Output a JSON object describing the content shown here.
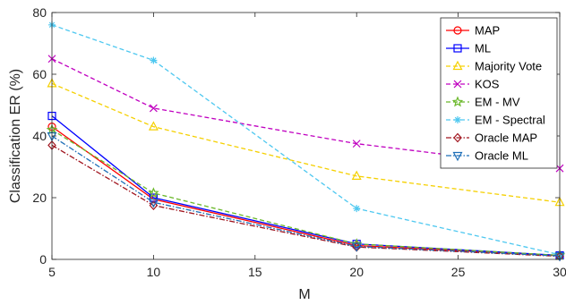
{
  "chart_data": {
    "type": "line",
    "title": "",
    "xlabel": "M",
    "ylabel": "Classification ER (%)",
    "xlim": [
      5,
      30
    ],
    "ylim": [
      0,
      80
    ],
    "xticks": [
      "5",
      "10",
      "15",
      "20",
      "25",
      "30"
    ],
    "yticks": [
      "0",
      "20",
      "40",
      "60",
      "80"
    ],
    "grid": false,
    "legend_position": "top-right",
    "x": [
      5,
      10,
      20,
      30
    ],
    "series": [
      {
        "name": "MAP",
        "color": "#ff0000",
        "dash": "solid",
        "marker": "circle",
        "values": [
          43,
          19.5,
          4.5,
          1.2
        ]
      },
      {
        "name": "ML",
        "color": "#0000ff",
        "dash": "solid",
        "marker": "square",
        "values": [
          46.5,
          20,
          5,
          1.3
        ]
      },
      {
        "name": "Majority Vote",
        "color": "#f5d000",
        "dash": "dashed",
        "marker": "triangle-up",
        "values": [
          57,
          43,
          27,
          18.5
        ]
      },
      {
        "name": "KOS",
        "color": "#c000c0",
        "dash": "dashed",
        "marker": "x",
        "values": [
          65,
          49,
          37.5,
          29.5
        ]
      },
      {
        "name": "EM - MV",
        "color": "#6ab82a",
        "dash": "dashed",
        "marker": "star",
        "values": [
          42,
          21.5,
          5,
          1.3
        ]
      },
      {
        "name": "EM - Spectral",
        "color": "#4ec8f0",
        "dash": "dashed",
        "marker": "asterisk",
        "values": [
          76,
          64.5,
          16.5,
          1.5
        ]
      },
      {
        "name": "Oracle MAP",
        "color": "#a0141e",
        "dash": "dashdot",
        "marker": "diamond",
        "values": [
          37,
          17.5,
          4,
          1
        ]
      },
      {
        "name": "Oracle ML",
        "color": "#1f6fb8",
        "dash": "dashdot",
        "marker": "triangle-down",
        "values": [
          40,
          18.5,
          4.2,
          1.1
        ]
      }
    ]
  }
}
